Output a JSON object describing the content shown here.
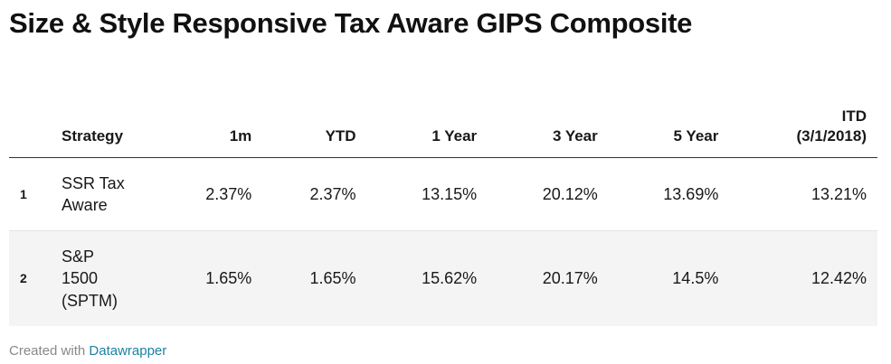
{
  "title": "Size & Style Responsive Tax Aware GIPS Composite",
  "chart_data": {
    "type": "table",
    "columns": {
      "strategy": "Strategy",
      "m1": "1m",
      "ytd": "YTD",
      "y1": "1 Year",
      "y3": "3 Year",
      "y5": "5 Year",
      "itd_line1": "ITD",
      "itd_line2": "(3/1/2018)"
    },
    "rows": [
      {
        "index": "1",
        "strategy_lines": [
          "SSR Tax",
          "Aware"
        ],
        "m1": "2.37%",
        "ytd": "2.37%",
        "y1": "13.15%",
        "y3": "20.12%",
        "y5": "13.69%",
        "itd": "13.21%"
      },
      {
        "index": "2",
        "strategy_lines": [
          "S&P",
          "1500",
          "(SPTM)"
        ],
        "m1": "1.65%",
        "ytd": "1.65%",
        "y1": "15.62%",
        "y3": "20.17%",
        "y5": "14.5%",
        "itd": "12.42%"
      }
    ]
  },
  "footer": {
    "prefix": "Created with",
    "link": "Datawrapper"
  }
}
